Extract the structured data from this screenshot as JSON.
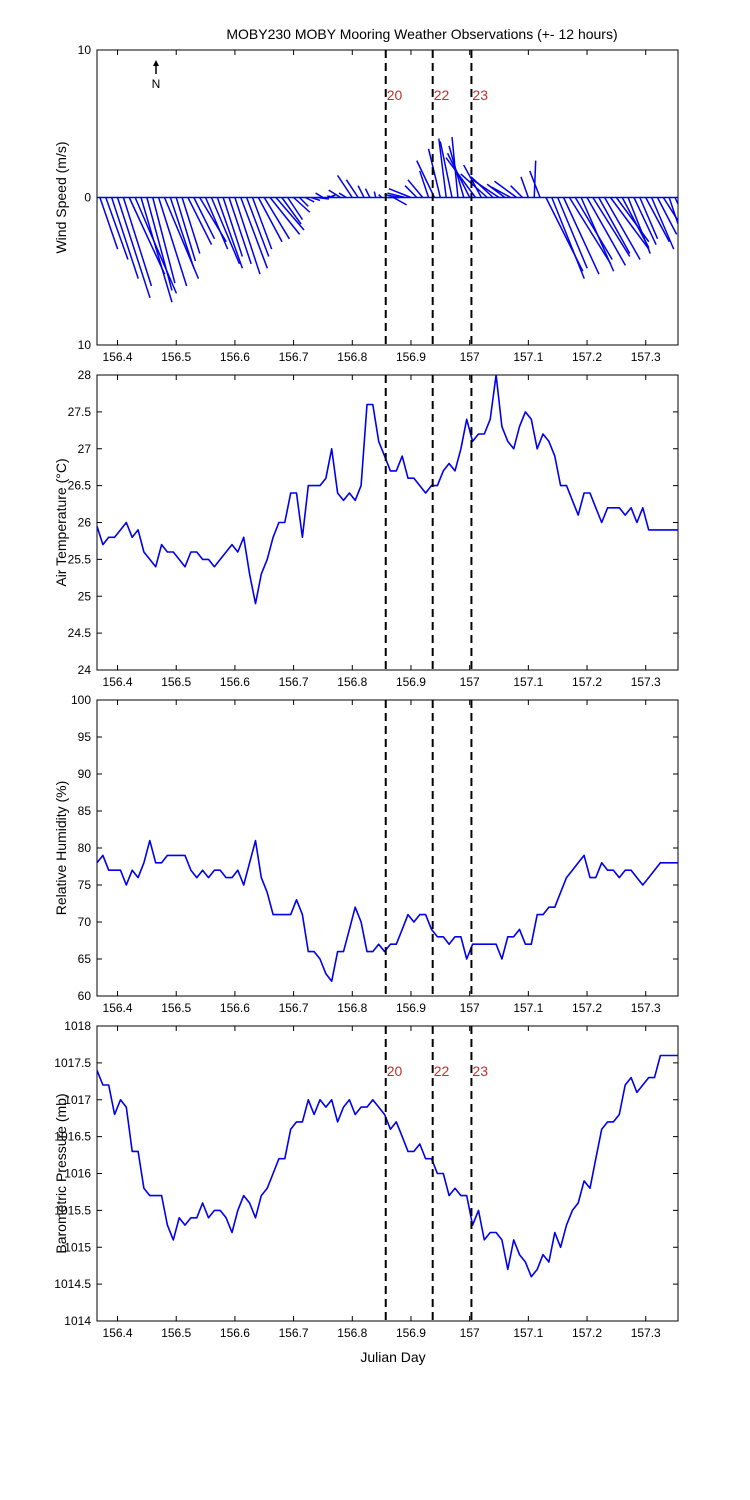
{
  "title": "MOBY230 MOBY Mooring Weather Observations (+- 12 hours)",
  "north_label": "N",
  "x_axis_label": "Julian Day",
  "colors": {
    "series": "#0000ee",
    "marker_label": "#c0302a",
    "axis": "#000000"
  },
  "chart_data": [
    {
      "type": "line",
      "subtype": "wind-vectors",
      "ylabel": "Wind Speed (m/s)",
      "xlim": [
        156.365,
        157.355
      ],
      "ylim": [
        -10,
        10
      ],
      "yticks": [
        10,
        0,
        10
      ],
      "xticks": [
        156.4,
        156.5,
        156.6,
        156.7,
        156.8,
        156.9,
        157,
        157.1,
        157.2,
        157.3
      ],
      "x": [
        156.37,
        156.38,
        156.39,
        156.4,
        156.41,
        156.42,
        156.43,
        156.44,
        156.45,
        156.46,
        156.47,
        156.48,
        156.49,
        156.5,
        156.51,
        156.52,
        156.53,
        156.54,
        156.55,
        156.56,
        156.57,
        156.58,
        156.59,
        156.6,
        156.61,
        156.62,
        156.63,
        156.64,
        156.65,
        156.66,
        156.67,
        156.68,
        156.69,
        156.7,
        156.71,
        156.72,
        156.73,
        156.74,
        156.75,
        156.76,
        156.77,
        156.78,
        156.79,
        156.8,
        156.81,
        156.82,
        156.83,
        156.84,
        156.85,
        156.86,
        156.87,
        156.88,
        156.89,
        156.9,
        156.91,
        156.92,
        156.93,
        156.94,
        156.95,
        156.96,
        156.97,
        156.98,
        156.99,
        157,
        157.01,
        157.02,
        157.03,
        157.04,
        157.05,
        157.06,
        157.07,
        157.08,
        157.09,
        157.1,
        157.11,
        157.12,
        157.13,
        157.14,
        157.15,
        157.16,
        157.17,
        157.18,
        157.19,
        157.2,
        157.21,
        157.22,
        157.23,
        157.24,
        157.25,
        157.26,
        157.27,
        157.28,
        157.29,
        157.3,
        157.31,
        157.32,
        157.33,
        157.34,
        157.35
      ],
      "u": [
        1.2,
        1.5,
        1.8,
        2.2,
        1.9,
        2.4,
        2.8,
        2.1,
        1.7,
        1.5,
        1.9,
        2.3,
        1.6,
        1.3,
        1.2,
        1.6,
        1.4,
        1.8,
        1.5,
        1.9,
        1.7,
        1.3,
        1.5,
        1.7,
        1.8,
        1.5,
        1.3,
        1.6,
        1.7,
        2.0,
        1.9,
        1.3,
        1.0,
        1.1,
        0.6,
        0.6,
        0.6,
        0.8,
        -0.5,
        0.5,
        -0.5,
        -0.8,
        -0.5,
        -1.0,
        -0.8,
        -0.4,
        -0.3,
        -0.1,
        -0.2,
        0.8,
        0.9,
        -1.0,
        -1.2,
        -1.5,
        -0.8,
        -1.0,
        -0.6,
        -1.2,
        -0.8,
        -0.5,
        -0.8,
        -0.4,
        -1.0,
        -1.5,
        -2.0,
        -1.2,
        -1.8,
        -1.5,
        -1.8,
        -1.2,
        -1.3,
        -1.5,
        -0.8,
        -0.5,
        0.1,
        -0.7,
        2.5,
        2.2,
        2.0,
        2.4,
        2.8,
        2.5,
        2.2,
        2.6,
        2.5,
        2.1,
        2.4,
        2.6,
        2.2,
        1.8,
        1.5,
        1.5,
        1.2,
        1.6,
        1.5,
        1.3,
        1.4,
        1.6,
        0.9
      ],
      "v": [
        -3.5,
        -4.2,
        -5.5,
        -6.8,
        -6.0,
        -5.2,
        -6.5,
        -7.1,
        -6.3,
        -5.8,
        -6.0,
        -5.5,
        -4.8,
        -4.3,
        -3.8,
        -3.2,
        -2.8,
        -3.0,
        -3.5,
        -4.5,
        -4.8,
        -4.0,
        -4.5,
        -5.2,
        -4.8,
        -4.0,
        -3.5,
        -3.0,
        -2.8,
        -2.5,
        -2.2,
        -1.8,
        -1.5,
        -1.0,
        -0.6,
        -0.3,
        -0.2,
        -0.1,
        0.3,
        0.2,
        0.1,
        0.5,
        0.3,
        1.5,
        1.2,
        0.8,
        0.6,
        0.4,
        0.2,
        0.0,
        -0.5,
        0.2,
        0.3,
        0.6,
        0.8,
        1.2,
        1.8,
        2.5,
        3.3,
        4.0,
        3.8,
        4.1,
        3.5,
        3.0,
        2.7,
        2.2,
        1.6,
        1.4,
        1.2,
        0.9,
        0.7,
        1.1,
        0.8,
        1.4,
        2.5,
        1.8,
        -5.0,
        -5.5,
        -4.8,
        -5.2,
        -4.5,
        -4.2,
        -5.0,
        -4.6,
        -4.0,
        -3.8,
        -4.2,
        -3.5,
        -3.0,
        -3.4,
        -3.8,
        -3.2,
        -2.8,
        -3.0,
        -3.5,
        -2.5,
        -2.2,
        -4.8,
        -2.0
      ]
    },
    {
      "type": "line",
      "ylabel": "Air Temperature (°C)",
      "xlim": [
        156.365,
        157.355
      ],
      "ylim": [
        24,
        28
      ],
      "yticks": [
        24,
        24.5,
        25,
        25.5,
        26,
        26.5,
        27,
        27.5,
        28
      ],
      "xticks": [
        156.4,
        156.5,
        156.6,
        156.7,
        156.8,
        156.9,
        157,
        157.1,
        157.2,
        157.3
      ],
      "x": [
        156.365,
        156.375,
        156.385,
        156.395,
        156.405,
        156.415,
        156.425,
        156.435,
        156.445,
        156.455,
        156.465,
        156.475,
        156.485,
        156.495,
        156.505,
        156.515,
        156.525,
        156.535,
        156.545,
        156.555,
        156.565,
        156.575,
        156.585,
        156.595,
        156.605,
        156.615,
        156.625,
        156.635,
        156.645,
        156.655,
        156.665,
        156.675,
        156.685,
        156.695,
        156.705,
        156.715,
        156.725,
        156.735,
        156.745,
        156.755,
        156.765,
        156.775,
        156.785,
        156.795,
        156.805,
        156.815,
        156.825,
        156.835,
        156.845,
        156.855,
        156.865,
        156.875,
        156.885,
        156.895,
        156.905,
        156.915,
        156.925,
        156.935,
        156.945,
        156.955,
        156.965,
        156.975,
        156.985,
        156.995,
        157.005,
        157.015,
        157.025,
        157.035,
        157.045,
        157.055,
        157.065,
        157.075,
        157.085,
        157.095,
        157.105,
        157.115,
        157.125,
        157.135,
        157.145,
        157.155,
        157.165,
        157.175,
        157.185,
        157.195,
        157.205,
        157.215,
        157.225,
        157.235,
        157.245,
        157.255,
        157.265,
        157.275,
        157.285,
        157.295,
        157.305,
        157.315,
        157.325,
        157.335,
        157.345,
        157.355
      ],
      "y": [
        25.95,
        25.7,
        25.8,
        25.8,
        25.9,
        26.0,
        25.8,
        25.9,
        25.6,
        25.5,
        25.4,
        25.7,
        25.6,
        25.6,
        25.5,
        25.4,
        25.6,
        25.6,
        25.5,
        25.5,
        25.4,
        25.5,
        25.6,
        25.7,
        25.6,
        25.8,
        25.3,
        24.9,
        25.3,
        25.5,
        25.8,
        26.0,
        26.0,
        26.4,
        26.4,
        25.8,
        26.5,
        26.5,
        26.5,
        26.6,
        27.0,
        26.4,
        26.3,
        26.4,
        26.3,
        26.5,
        27.6,
        27.6,
        27.1,
        26.9,
        26.7,
        26.7,
        26.9,
        26.6,
        26.6,
        26.5,
        26.4,
        26.5,
        26.5,
        26.7,
        26.8,
        26.7,
        27.0,
        27.4,
        27.1,
        27.2,
        27.2,
        27.4,
        28.0,
        27.3,
        27.1,
        27.0,
        27.3,
        27.5,
        27.4,
        27.0,
        27.2,
        27.1,
        26.9,
        26.5,
        26.5,
        26.3,
        26.1,
        26.4,
        26.4,
        26.2,
        26.0,
        26.2,
        26.2,
        26.2,
        26.1,
        26.2,
        26.0,
        26.2,
        25.9,
        25.9,
        25.9,
        25.9,
        25.9,
        25.9
      ]
    },
    {
      "type": "line",
      "ylabel": "Relative Humidity (%)",
      "xlim": [
        156.365,
        157.355
      ],
      "ylim": [
        60,
        100
      ],
      "yticks": [
        60,
        65,
        70,
        75,
        80,
        85,
        90,
        95,
        100
      ],
      "xticks": [
        156.4,
        156.5,
        156.6,
        156.7,
        156.8,
        156.9,
        157,
        157.1,
        157.2,
        157.3
      ],
      "x": [
        156.365,
        156.375,
        156.385,
        156.395,
        156.405,
        156.415,
        156.425,
        156.435,
        156.445,
        156.455,
        156.465,
        156.475,
        156.485,
        156.495,
        156.505,
        156.515,
        156.525,
        156.535,
        156.545,
        156.555,
        156.565,
        156.575,
        156.585,
        156.595,
        156.605,
        156.615,
        156.625,
        156.635,
        156.645,
        156.655,
        156.665,
        156.675,
        156.685,
        156.695,
        156.705,
        156.715,
        156.725,
        156.735,
        156.745,
        156.755,
        156.765,
        156.775,
        156.785,
        156.795,
        156.805,
        156.815,
        156.825,
        156.835,
        156.845,
        156.855,
        156.865,
        156.875,
        156.885,
        156.895,
        156.905,
        156.915,
        156.925,
        156.935,
        156.945,
        156.955,
        156.965,
        156.975,
        156.985,
        156.995,
        157.005,
        157.015,
        157.025,
        157.035,
        157.045,
        157.055,
        157.065,
        157.075,
        157.085,
        157.095,
        157.105,
        157.115,
        157.125,
        157.135,
        157.145,
        157.155,
        157.165,
        157.175,
        157.185,
        157.195,
        157.205,
        157.215,
        157.225,
        157.235,
        157.245,
        157.255,
        157.265,
        157.275,
        157.285,
        157.295,
        157.305,
        157.315,
        157.325,
        157.335,
        157.345,
        157.355
      ],
      "y": [
        78,
        79,
        77,
        77,
        77,
        75,
        77,
        76,
        78,
        81,
        78,
        78,
        79,
        79,
        79,
        79,
        77,
        76,
        77,
        76,
        77,
        77,
        76,
        76,
        77,
        75,
        78,
        81,
        76,
        74,
        71,
        71,
        71,
        71,
        73,
        71,
        66,
        66,
        65,
        63,
        62,
        66,
        66,
        69,
        72,
        70,
        66,
        66,
        67,
        66,
        67,
        67,
        69,
        71,
        70,
        71,
        71,
        69,
        68,
        68,
        67,
        68,
        68,
        65,
        67,
        67,
        67,
        67,
        67,
        65,
        68,
        68,
        69,
        67,
        67,
        71,
        71,
        72,
        72,
        74,
        76,
        77,
        78,
        79,
        76,
        76,
        78,
        77,
        77,
        76,
        77,
        77,
        76,
        75,
        76,
        77,
        78,
        78,
        78,
        78
      ],
      "_note_len": ""
    },
    {
      "type": "line",
      "ylabel": "Barometric Pressure (mb)",
      "xlim": [
        156.365,
        157.355
      ],
      "ylim": [
        1014,
        1018
      ],
      "yticks": [
        1014,
        1014.5,
        1015,
        1015.5,
        1016,
        1016.5,
        1017,
        1017.5,
        1018
      ],
      "xticks": [
        156.4,
        156.5,
        156.6,
        156.7,
        156.8,
        156.9,
        157,
        157.1,
        157.2,
        157.3
      ],
      "x": [
        156.365,
        156.375,
        156.385,
        156.395,
        156.405,
        156.415,
        156.425,
        156.435,
        156.445,
        156.455,
        156.465,
        156.475,
        156.485,
        156.495,
        156.505,
        156.515,
        156.525,
        156.535,
        156.545,
        156.555,
        156.565,
        156.575,
        156.585,
        156.595,
        156.605,
        156.615,
        156.625,
        156.635,
        156.645,
        156.655,
        156.665,
        156.675,
        156.685,
        156.695,
        156.705,
        156.715,
        156.725,
        156.735,
        156.745,
        156.755,
        156.765,
        156.775,
        156.785,
        156.795,
        156.805,
        156.815,
        156.825,
        156.835,
        156.845,
        156.855,
        156.865,
        156.875,
        156.885,
        156.895,
        156.905,
        156.915,
        156.925,
        156.935,
        156.945,
        156.955,
        156.965,
        156.975,
        156.985,
        156.995,
        157.005,
        157.015,
        157.025,
        157.035,
        157.045,
        157.055,
        157.065,
        157.075,
        157.085,
        157.095,
        157.105,
        157.115,
        157.125,
        157.135,
        157.145,
        157.155,
        157.165,
        157.175,
        157.185,
        157.195,
        157.205,
        157.215,
        157.225,
        157.235,
        157.245,
        157.255,
        157.265,
        157.275,
        157.285,
        157.295,
        157.305,
        157.315,
        157.325,
        157.335,
        157.345,
        157.355
      ],
      "y": [
        1017.4,
        1017.2,
        1017.2,
        1016.8,
        1017.0,
        1016.9,
        1016.3,
        1016.3,
        1015.8,
        1015.7,
        1015.7,
        1015.7,
        1015.3,
        1015.1,
        1015.4,
        1015.3,
        1015.4,
        1015.4,
        1015.6,
        1015.4,
        1015.5,
        1015.5,
        1015.4,
        1015.2,
        1015.5,
        1015.7,
        1015.6,
        1015.4,
        1015.7,
        1015.8,
        1016.0,
        1016.2,
        1016.2,
        1016.6,
        1016.7,
        1016.7,
        1017.0,
        1016.8,
        1017.0,
        1016.9,
        1017.0,
        1016.7,
        1016.9,
        1017.0,
        1016.8,
        1016.9,
        1016.9,
        1017.0,
        1016.9,
        1016.8,
        1016.6,
        1016.7,
        1016.5,
        1016.3,
        1016.3,
        1016.4,
        1016.2,
        1016.2,
        1016.0,
        1016.0,
        1015.7,
        1015.8,
        1015.7,
        1015.7,
        1015.3,
        1015.5,
        1015.1,
        1015.2,
        1015.2,
        1015.1,
        1014.7,
        1015.1,
        1014.9,
        1014.8,
        1014.6,
        1014.7,
        1014.9,
        1014.8,
        1015.2,
        1015.0,
        1015.3,
        1015.5,
        1015.6,
        1015.9,
        1015.8,
        1016.2,
        1016.6,
        1016.7,
        1016.7,
        1016.8,
        1017.2,
        1017.3,
        1017.1,
        1017.2,
        1017.3,
        1017.3,
        1017.6,
        1017.6,
        1017.6,
        1017.6
      ]
    }
  ],
  "markers": [
    {
      "x": 156.857,
      "label": "20"
    },
    {
      "x": 156.937,
      "label": "22"
    },
    {
      "x": 157.003,
      "label": "23"
    }
  ]
}
